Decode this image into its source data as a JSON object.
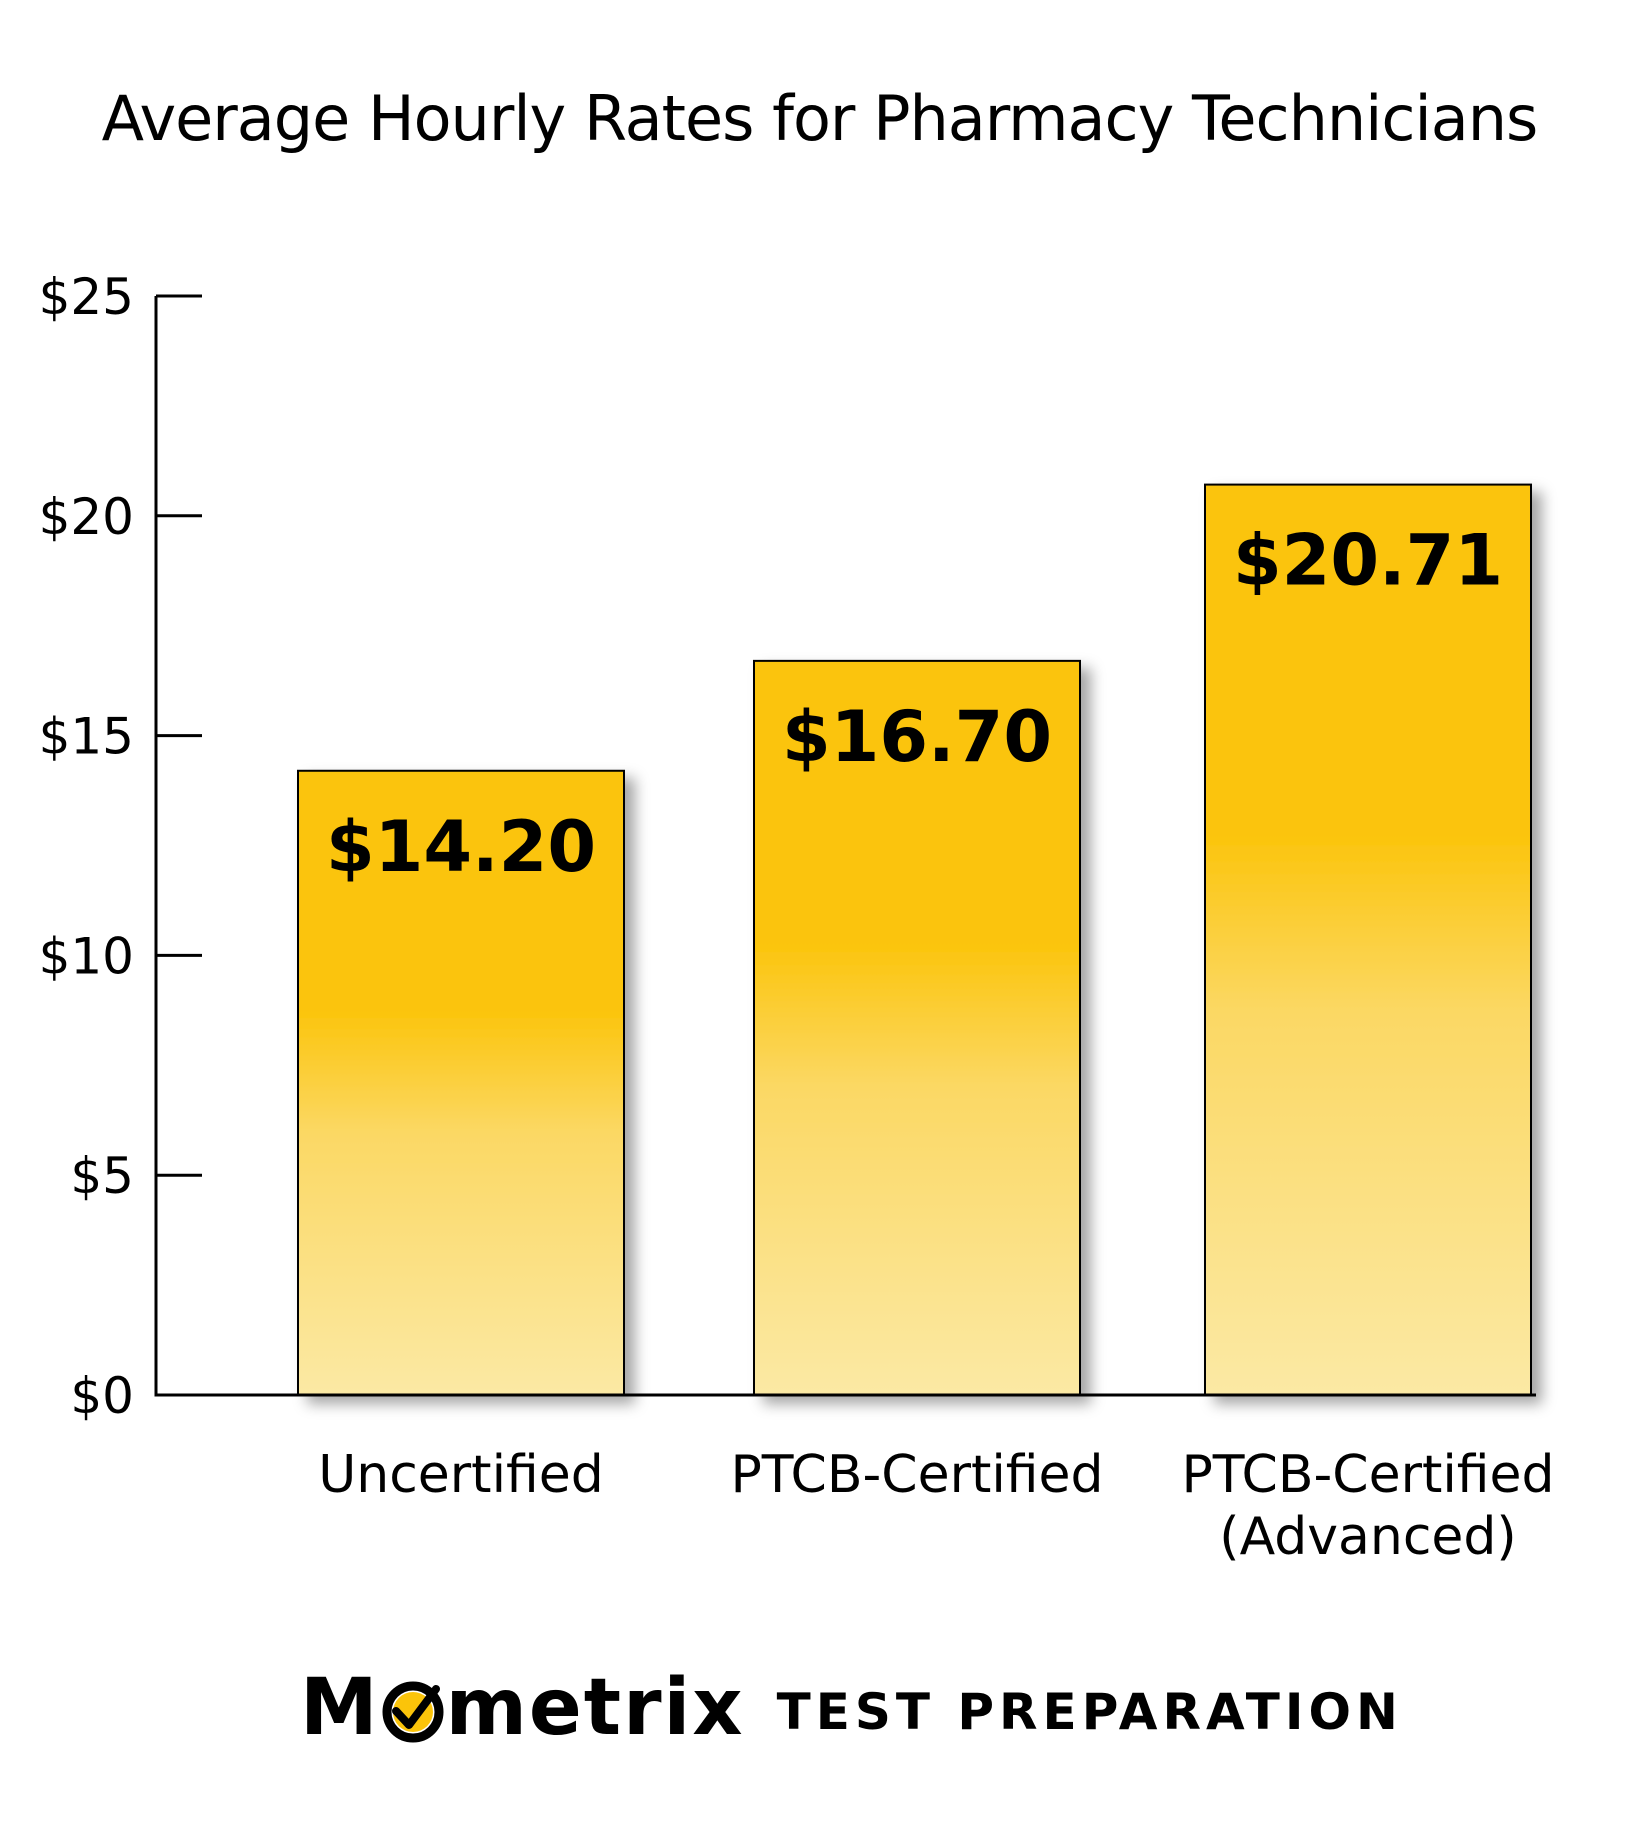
{
  "chart_data": {
    "type": "bar",
    "title": "Average Hourly Rates for Pharmacy Technicians",
    "categories": [
      [
        "Uncertified"
      ],
      [
        "PTCB-Certified"
      ],
      [
        "PTCB-Certified",
        "(Advanced)"
      ]
    ],
    "values": [
      14.2,
      16.7,
      20.71
    ],
    "data_labels": [
      "$14.20",
      "$16.70",
      "$20.71"
    ],
    "yticks": [
      0,
      5,
      10,
      15,
      20,
      25
    ],
    "ytick_labels": [
      "$0",
      "$5",
      "$10",
      "$15",
      "$20",
      "$25"
    ],
    "ylim": [
      0,
      25
    ],
    "xlabel": "",
    "ylabel": "",
    "grid": false,
    "legend": "none",
    "bar_color_top": "#FBC40A",
    "bar_color_bottom": "#FBE9A4"
  },
  "logo": {
    "brand_pre": "M",
    "brand_post": "metrix",
    "tagline": "TEST PREPARATION",
    "check_color": "#FBC40A"
  }
}
